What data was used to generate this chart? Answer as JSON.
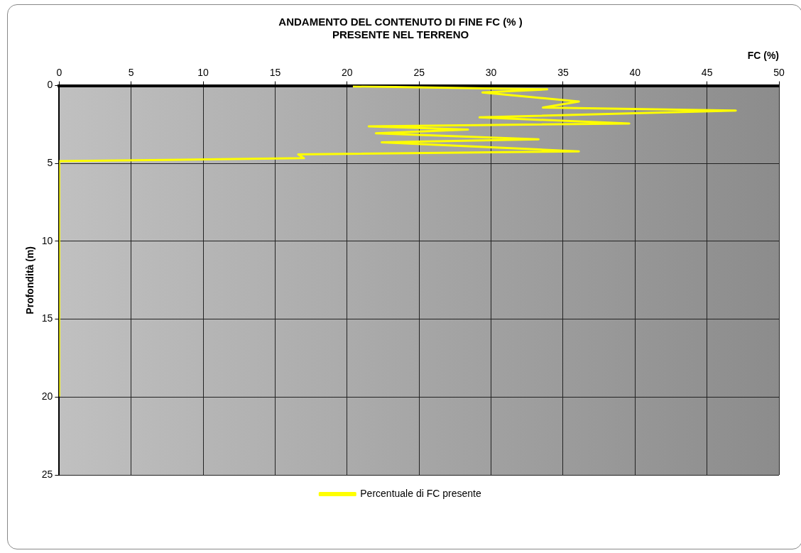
{
  "chart_data": {
    "type": "line",
    "title": "ANDAMENTO DEL CONTENUTO DI FINE FC (% )\nPRESENTE NEL TERRENO",
    "xlabel": "FC (%)",
    "ylabel": "Profondità (m)",
    "xlim": [
      0,
      50
    ],
    "xticks": [
      0,
      5,
      10,
      15,
      20,
      25,
      30,
      35,
      40,
      45,
      50
    ],
    "ylim": [
      25,
      0
    ],
    "yticks": [
      0,
      5,
      10,
      15,
      20,
      25
    ],
    "grid": true,
    "legend": "bottom",
    "marker": "none",
    "line_style": "solid",
    "series": [
      {
        "name": "Percentuale di FC presente",
        "color": "#ffff00",
        "x": [
          20.4,
          33.9,
          29.4,
          36.1,
          33.6,
          47.0,
          29.2,
          39.6,
          21.5,
          28.4,
          22.0,
          33.3,
          22.4,
          36.1,
          16.6,
          17.0,
          0,
          0
        ],
        "values": [
          0.05,
          0.24,
          0.44,
          1.02,
          1.41,
          1.6,
          2.04,
          2.43,
          2.62,
          2.82,
          3.06,
          3.45,
          3.64,
          4.22,
          4.42,
          4.66,
          4.85,
          19.9
        ]
      }
    ]
  }
}
